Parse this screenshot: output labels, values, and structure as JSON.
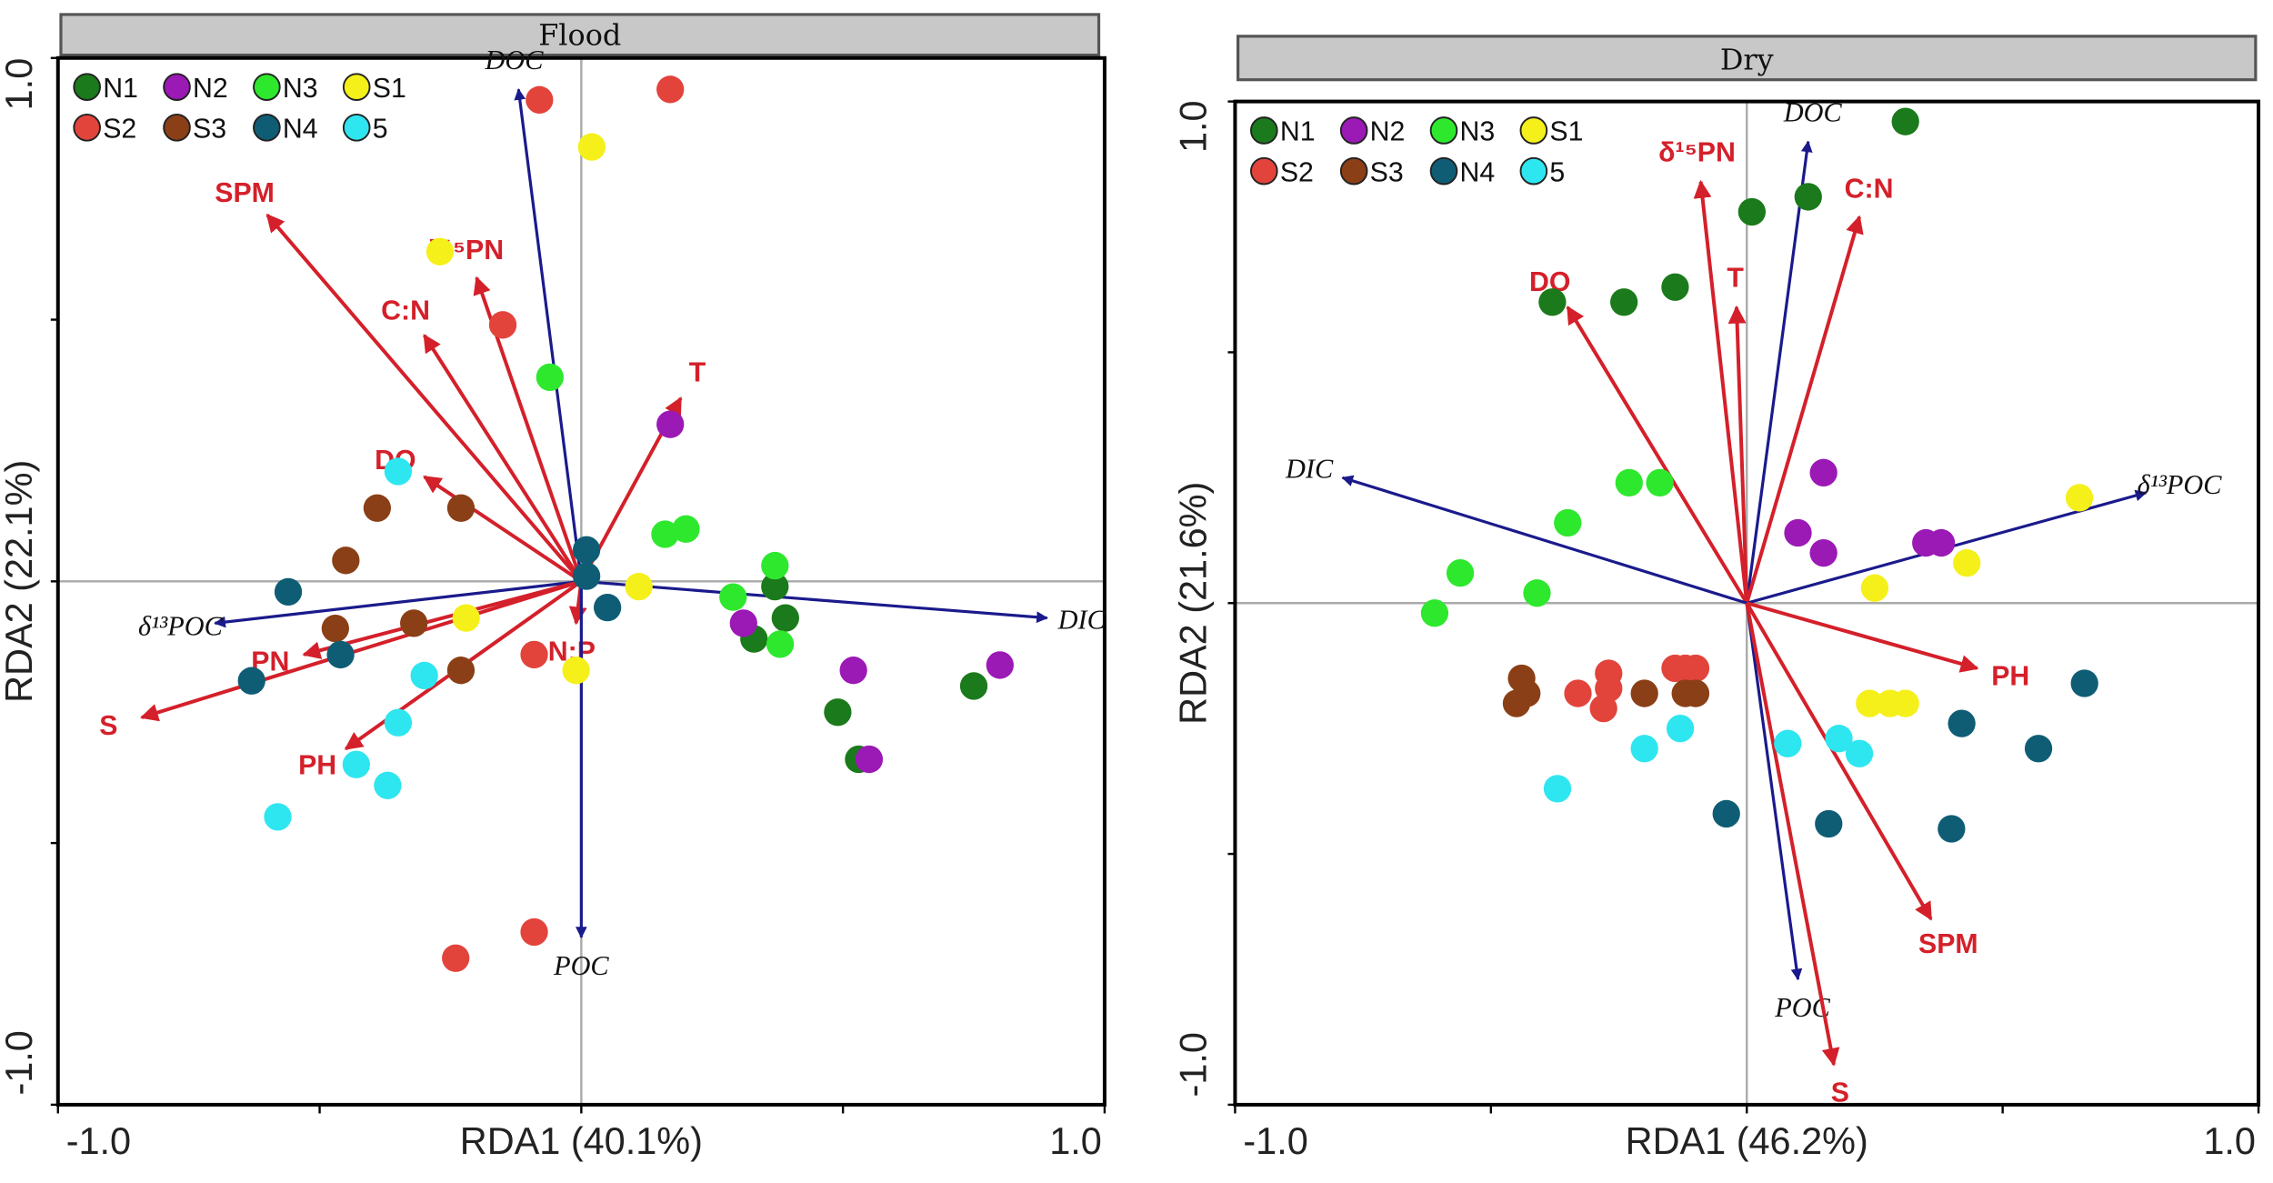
{
  "chart_data": [
    {
      "type": "scatter",
      "title": "Flood",
      "xlabel": "RDA1 (40.1%)",
      "ylabel": "RDA2 (22.1%)",
      "xlim": [
        -1.0,
        1.0
      ],
      "ylim": [
        -1.0,
        1.0
      ],
      "xticks": [
        "-1.0",
        "1.0"
      ],
      "yticks": [
        "1.0",
        "-1.0"
      ],
      "legend_placement": "top-left",
      "arrows": [
        {
          "label": "DOC",
          "kind": "carbon",
          "x": -0.12,
          "y": 0.94
        },
        {
          "label": "SPM",
          "kind": "env",
          "x": -0.6,
          "y": 0.7
        },
        {
          "label": "δ¹⁵PN",
          "kind": "env",
          "x": -0.2,
          "y": 0.58
        },
        {
          "label": "C:N",
          "kind": "env",
          "x": -0.3,
          "y": 0.47
        },
        {
          "label": "T",
          "kind": "env",
          "x": 0.19,
          "y": 0.35
        },
        {
          "label": "DO",
          "kind": "env",
          "x": -0.3,
          "y": 0.2
        },
        {
          "label": "DIC",
          "kind": "carbon",
          "x": 0.89,
          "y": -0.07
        },
        {
          "label": "δ¹³POC",
          "kind": "carbon",
          "x": -0.7,
          "y": -0.08
        },
        {
          "label": "PN",
          "kind": "env",
          "x": -0.53,
          "y": -0.14
        },
        {
          "label": "S",
          "kind": "env",
          "x": -0.84,
          "y": -0.26
        },
        {
          "label": "PH",
          "kind": "env",
          "x": -0.45,
          "y": -0.32
        },
        {
          "label": "N:P",
          "kind": "env",
          "x": -0.01,
          "y": -0.08
        },
        {
          "label": "POC",
          "kind": "carbon",
          "x": 0.0,
          "y": -0.68
        }
      ],
      "series": [
        {
          "name": "N1",
          "color": "#1b7a1b",
          "points": [
            [
              0.37,
              -0.01
            ],
            [
              0.39,
              -0.07
            ],
            [
              0.33,
              -0.11
            ],
            [
              0.49,
              -0.25
            ],
            [
              0.53,
              -0.34
            ],
            [
              0.75,
              -0.2
            ]
          ]
        },
        {
          "name": "N2",
          "color": "#9b19b5",
          "points": [
            [
              0.17,
              0.3
            ],
            [
              0.31,
              -0.08
            ],
            [
              0.52,
              -0.17
            ],
            [
              0.8,
              -0.16
            ],
            [
              0.55,
              -0.34
            ]
          ]
        },
        {
          "name": "N3",
          "color": "#2ee82e",
          "points": [
            [
              -0.06,
              0.39
            ],
            [
              0.16,
              0.09
            ],
            [
              0.2,
              0.1
            ],
            [
              0.37,
              0.03
            ],
            [
              0.29,
              -0.03
            ],
            [
              0.38,
              -0.12
            ]
          ]
        },
        {
          "name": "S1",
          "color": "#f5f01a",
          "points": [
            [
              0.02,
              0.83
            ],
            [
              -0.27,
              0.63
            ],
            [
              0.11,
              -0.01
            ],
            [
              -0.22,
              -0.07
            ],
            [
              -0.01,
              -0.17
            ]
          ]
        },
        {
          "name": "S2",
          "color": "#e2443c",
          "points": [
            [
              -0.08,
              0.92
            ],
            [
              0.17,
              0.94
            ],
            [
              -0.15,
              0.49
            ],
            [
              -0.09,
              -0.14
            ],
            [
              -0.09,
              -0.67
            ],
            [
              -0.24,
              -0.72
            ]
          ]
        },
        {
          "name": "S3",
          "color": "#8a3f16",
          "points": [
            [
              -0.39,
              0.14
            ],
            [
              -0.23,
              0.14
            ],
            [
              -0.45,
              0.04
            ],
            [
              -0.47,
              -0.09
            ],
            [
              -0.32,
              -0.08
            ],
            [
              -0.23,
              -0.17
            ]
          ]
        },
        {
          "name": "N4",
          "color": "#0f5d75",
          "points": [
            [
              0.01,
              0.06
            ],
            [
              0.01,
              0.01
            ],
            [
              -0.56,
              -0.02
            ],
            [
              0.05,
              -0.05
            ],
            [
              -0.46,
              -0.14
            ],
            [
              -0.63,
              -0.19
            ]
          ]
        },
        {
          "name": "5",
          "color": "#2ee6f0",
          "points": [
            [
              -0.35,
              0.21
            ],
            [
              -0.3,
              -0.18
            ],
            [
              -0.35,
              -0.27
            ],
            [
              -0.43,
              -0.35
            ],
            [
              -0.37,
              -0.39
            ],
            [
              -0.58,
              -0.45
            ]
          ]
        }
      ]
    },
    {
      "type": "scatter",
      "title": "Dry",
      "xlabel": "RDA1 (46.2%)",
      "ylabel": "RDA2 (21.6%)",
      "xlim": [
        -1.0,
        1.0
      ],
      "ylim": [
        -1.0,
        1.0
      ],
      "xticks": [
        "-1.0",
        "1.0"
      ],
      "yticks": [
        "1.0",
        "-1.0"
      ],
      "legend_placement": "top-left",
      "arrows": [
        {
          "label": "DOC",
          "kind": "carbon",
          "x": 0.12,
          "y": 0.92
        },
        {
          "label": "δ¹⁵PN",
          "kind": "env",
          "x": -0.09,
          "y": 0.84
        },
        {
          "label": "C:N",
          "kind": "env",
          "x": 0.22,
          "y": 0.77
        },
        {
          "label": "T",
          "kind": "env",
          "x": -0.02,
          "y": 0.59
        },
        {
          "label": "DO",
          "kind": "env",
          "x": -0.35,
          "y": 0.59
        },
        {
          "label": "DIC",
          "kind": "carbon",
          "x": -0.79,
          "y": 0.25
        },
        {
          "label": "δ¹³POC",
          "kind": "carbon",
          "x": 0.78,
          "y": 0.22
        },
        {
          "label": "PH",
          "kind": "env",
          "x": 0.45,
          "y": -0.13
        },
        {
          "label": "SPM",
          "kind": "env",
          "x": 0.36,
          "y": -0.63
        },
        {
          "label": "POC",
          "kind": "carbon",
          "x": 0.1,
          "y": -0.75
        },
        {
          "label": "S",
          "kind": "env",
          "x": 0.17,
          "y": -0.92
        }
      ],
      "series": [
        {
          "name": "N1",
          "color": "#1b7a1b",
          "points": [
            [
              0.31,
              0.96
            ],
            [
              0.12,
              0.81
            ],
            [
              0.01,
              0.78
            ],
            [
              -0.14,
              0.63
            ],
            [
              -0.24,
              0.6
            ],
            [
              -0.38,
              0.6
            ]
          ]
        },
        {
          "name": "N2",
          "color": "#9b19b5",
          "points": [
            [
              0.15,
              0.26
            ],
            [
              0.1,
              0.14
            ],
            [
              0.15,
              0.1
            ],
            [
              0.35,
              0.12
            ],
            [
              0.38,
              0.12
            ]
          ]
        },
        {
          "name": "N3",
          "color": "#2ee82e",
          "points": [
            [
              -0.23,
              0.24
            ],
            [
              -0.17,
              0.24
            ],
            [
              -0.35,
              0.16
            ],
            [
              -0.56,
              0.06
            ],
            [
              -0.41,
              0.02
            ],
            [
              -0.61,
              -0.02
            ]
          ]
        },
        {
          "name": "S1",
          "color": "#f5f01a",
          "points": [
            [
              0.65,
              0.21
            ],
            [
              0.43,
              0.08
            ],
            [
              0.25,
              0.03
            ],
            [
              0.24,
              -0.2
            ],
            [
              0.28,
              -0.2
            ],
            [
              0.31,
              -0.2
            ]
          ]
        },
        {
          "name": "S2",
          "color": "#e2443c",
          "points": [
            [
              -0.27,
              -0.14
            ],
            [
              -0.33,
              -0.18
            ],
            [
              -0.28,
              -0.21
            ],
            [
              -0.27,
              -0.17
            ],
            [
              -0.14,
              -0.13
            ],
            [
              -0.1,
              -0.13
            ],
            [
              -0.12,
              -0.13
            ]
          ]
        },
        {
          "name": "S3",
          "color": "#8a3f16",
          "points": [
            [
              -0.44,
              -0.15
            ],
            [
              -0.43,
              -0.18
            ],
            [
              -0.45,
              -0.2
            ],
            [
              -0.2,
              -0.18
            ],
            [
              -0.12,
              -0.18
            ],
            [
              -0.1,
              -0.18
            ]
          ]
        },
        {
          "name": "N4",
          "color": "#0f5d75",
          "points": [
            [
              0.66,
              -0.16
            ],
            [
              0.42,
              -0.24
            ],
            [
              0.57,
              -0.29
            ],
            [
              -0.04,
              -0.42
            ],
            [
              0.16,
              -0.44
            ],
            [
              0.4,
              -0.45
            ]
          ]
        },
        {
          "name": "5",
          "color": "#2ee6f0",
          "points": [
            [
              -0.13,
              -0.25
            ],
            [
              -0.2,
              -0.29
            ],
            [
              0.08,
              -0.28
            ],
            [
              0.18,
              -0.27
            ],
            [
              0.22,
              -0.3
            ],
            [
              -0.37,
              -0.37
            ]
          ]
        }
      ]
    }
  ],
  "colors": {
    "env_arrow": "#d4202a",
    "carbon_arrow": "#1a1a8c",
    "title_bar": "#c8c8c8"
  }
}
